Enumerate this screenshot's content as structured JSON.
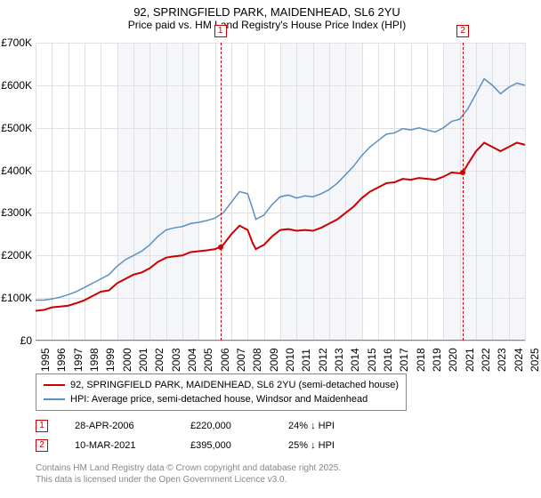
{
  "title": "92, SPRINGFIELD PARK, MAIDENHEAD, SL6 2YU",
  "subtitle": "Price paid vs. HM Land Registry's House Price Index (HPI)",
  "chart": {
    "type": "line",
    "ylim": [
      0,
      700000
    ],
    "ytick_step": 100000,
    "yticks": [
      "£0",
      "£100K",
      "£200K",
      "£300K",
      "£400K",
      "£500K",
      "£600K",
      "£700K"
    ],
    "xlim": [
      1995,
      2025
    ],
    "xticks": [
      1995,
      1996,
      1997,
      1998,
      1999,
      2000,
      2001,
      2002,
      2003,
      2004,
      2005,
      2006,
      2007,
      2008,
      2009,
      2010,
      2011,
      2012,
      2013,
      2014,
      2015,
      2016,
      2017,
      2018,
      2019,
      2020,
      2021,
      2022,
      2023,
      2024,
      2025
    ],
    "alt_band_years": 5,
    "background_color": "#ffffff",
    "alt_background_color": "#f4f6fa",
    "grid_color": "#e0e0e0",
    "series": [
      {
        "name": "property",
        "label": "92, SPRINGFIELD PARK, MAIDENHEAD, SL6 2YU (semi-detached house)",
        "color": "#cc0000",
        "line_width": 2,
        "data": [
          [
            1995.0,
            70000
          ],
          [
            1995.5,
            72000
          ],
          [
            1996.0,
            78000
          ],
          [
            1996.5,
            80000
          ],
          [
            1997.0,
            82000
          ],
          [
            1997.5,
            88000
          ],
          [
            1998.0,
            95000
          ],
          [
            1998.5,
            105000
          ],
          [
            1999.0,
            115000
          ],
          [
            1999.5,
            118000
          ],
          [
            2000.0,
            135000
          ],
          [
            2000.5,
            145000
          ],
          [
            2001.0,
            155000
          ],
          [
            2001.5,
            160000
          ],
          [
            2002.0,
            170000
          ],
          [
            2002.5,
            185000
          ],
          [
            2003.0,
            195000
          ],
          [
            2003.5,
            198000
          ],
          [
            2004.0,
            200000
          ],
          [
            2004.5,
            208000
          ],
          [
            2005.0,
            210000
          ],
          [
            2005.5,
            212000
          ],
          [
            2006.0,
            215000
          ],
          [
            2006.33,
            220000
          ],
          [
            2006.5,
            225000
          ],
          [
            2007.0,
            250000
          ],
          [
            2007.5,
            270000
          ],
          [
            2008.0,
            260000
          ],
          [
            2008.3,
            230000
          ],
          [
            2008.5,
            215000
          ],
          [
            2009.0,
            225000
          ],
          [
            2009.5,
            245000
          ],
          [
            2010.0,
            260000
          ],
          [
            2010.5,
            262000
          ],
          [
            2011.0,
            258000
          ],
          [
            2011.5,
            260000
          ],
          [
            2012.0,
            258000
          ],
          [
            2012.5,
            265000
          ],
          [
            2013.0,
            275000
          ],
          [
            2013.5,
            285000
          ],
          [
            2014.0,
            300000
          ],
          [
            2014.5,
            315000
          ],
          [
            2015.0,
            335000
          ],
          [
            2015.5,
            350000
          ],
          [
            2016.0,
            360000
          ],
          [
            2016.5,
            370000
          ],
          [
            2017.0,
            372000
          ],
          [
            2017.5,
            380000
          ],
          [
            2018.0,
            378000
          ],
          [
            2018.5,
            382000
          ],
          [
            2019.0,
            380000
          ],
          [
            2019.5,
            378000
          ],
          [
            2020.0,
            385000
          ],
          [
            2020.5,
            395000
          ],
          [
            2021.0,
            393000
          ],
          [
            2021.19,
            395000
          ],
          [
            2021.5,
            415000
          ],
          [
            2022.0,
            445000
          ],
          [
            2022.5,
            465000
          ],
          [
            2023.0,
            455000
          ],
          [
            2023.5,
            445000
          ],
          [
            2024.0,
            455000
          ],
          [
            2024.5,
            465000
          ],
          [
            2025.0,
            460000
          ]
        ]
      },
      {
        "name": "hpi",
        "label": "HPI: Average price, semi-detached house, Windsor and Maidenhead",
        "color": "#5b8fbf",
        "line_width": 1.5,
        "data": [
          [
            1995.0,
            95000
          ],
          [
            1995.5,
            95000
          ],
          [
            1996.0,
            98000
          ],
          [
            1996.5,
            102000
          ],
          [
            1997.0,
            108000
          ],
          [
            1997.5,
            115000
          ],
          [
            1998.0,
            125000
          ],
          [
            1998.5,
            135000
          ],
          [
            1999.0,
            145000
          ],
          [
            1999.5,
            155000
          ],
          [
            2000.0,
            175000
          ],
          [
            2000.5,
            190000
          ],
          [
            2001.0,
            200000
          ],
          [
            2001.5,
            210000
          ],
          [
            2002.0,
            225000
          ],
          [
            2002.5,
            245000
          ],
          [
            2003.0,
            260000
          ],
          [
            2003.5,
            265000
          ],
          [
            2004.0,
            268000
          ],
          [
            2004.5,
            275000
          ],
          [
            2005.0,
            278000
          ],
          [
            2005.5,
            282000
          ],
          [
            2006.0,
            288000
          ],
          [
            2006.5,
            300000
          ],
          [
            2007.0,
            325000
          ],
          [
            2007.5,
            350000
          ],
          [
            2008.0,
            345000
          ],
          [
            2008.3,
            310000
          ],
          [
            2008.5,
            285000
          ],
          [
            2009.0,
            295000
          ],
          [
            2009.5,
            320000
          ],
          [
            2010.0,
            338000
          ],
          [
            2010.5,
            342000
          ],
          [
            2011.0,
            335000
          ],
          [
            2011.5,
            340000
          ],
          [
            2012.0,
            338000
          ],
          [
            2012.5,
            345000
          ],
          [
            2013.0,
            355000
          ],
          [
            2013.5,
            370000
          ],
          [
            2014.0,
            390000
          ],
          [
            2014.5,
            410000
          ],
          [
            2015.0,
            435000
          ],
          [
            2015.5,
            455000
          ],
          [
            2016.0,
            470000
          ],
          [
            2016.5,
            485000
          ],
          [
            2017.0,
            488000
          ],
          [
            2017.5,
            498000
          ],
          [
            2018.0,
            495000
          ],
          [
            2018.5,
            500000
          ],
          [
            2019.0,
            495000
          ],
          [
            2019.5,
            490000
          ],
          [
            2020.0,
            500000
          ],
          [
            2020.5,
            515000
          ],
          [
            2021.0,
            520000
          ],
          [
            2021.5,
            545000
          ],
          [
            2022.0,
            580000
          ],
          [
            2022.5,
            615000
          ],
          [
            2023.0,
            600000
          ],
          [
            2023.5,
            580000
          ],
          [
            2024.0,
            595000
          ],
          [
            2024.5,
            605000
          ],
          [
            2025.0,
            600000
          ]
        ]
      }
    ],
    "markers": [
      {
        "id": "1",
        "x": 2006.33,
        "y": 220000,
        "color": "#cc0000"
      },
      {
        "id": "2",
        "x": 2021.19,
        "y": 395000,
        "color": "#cc0000"
      }
    ]
  },
  "legend": {
    "border_color": "#888888"
  },
  "transactions": [
    {
      "id": "1",
      "date": "28-APR-2006",
      "price": "£220,000",
      "diff": "24% ↓ HPI",
      "color": "#cc0000"
    },
    {
      "id": "2",
      "date": "10-MAR-2021",
      "price": "£395,000",
      "diff": "25% ↓ HPI",
      "color": "#cc0000"
    }
  ],
  "footer": {
    "line1": "Contains HM Land Registry data © Crown copyright and database right 2025.",
    "line2": "This data is licensed under the Open Government Licence v3.0."
  }
}
